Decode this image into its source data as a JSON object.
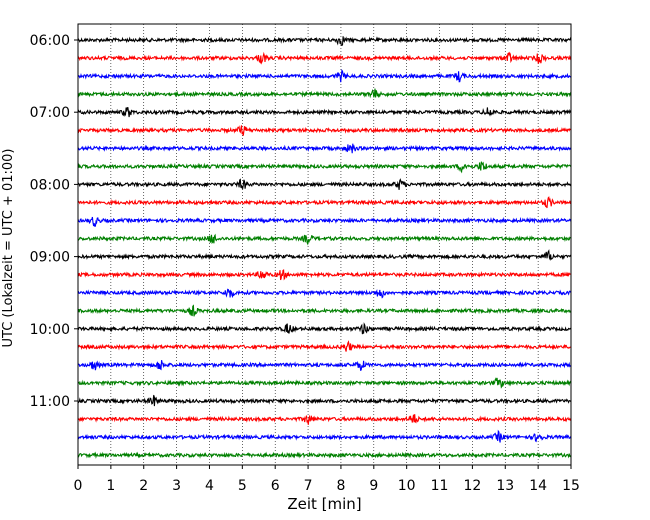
{
  "chart_data": {
    "type": "line",
    "title": "",
    "xlabel": "Zeit  [min]",
    "ylabel": "UTC (Lokalzeit = UTC + 01:00)",
    "xlim": [
      0,
      15
    ],
    "x_ticks": [
      "0",
      "1",
      "2",
      "3",
      "4",
      "5",
      "6",
      "7",
      "8",
      "9",
      "10",
      "11",
      "12",
      "13",
      "14",
      "15"
    ],
    "y_tick_labels": [
      "06:00",
      "07:00",
      "08:00",
      "09:00",
      "10:00",
      "11:00"
    ],
    "grid": "vertical dotted lines at each minute",
    "trace_interval_minutes": 15,
    "traces": [
      {
        "start": "06:00",
        "color": "#000000",
        "events_min": [
          8.0
        ]
      },
      {
        "start": "06:15",
        "color": "#ff0000",
        "events_min": [
          5.6,
          13.1,
          14.05
        ]
      },
      {
        "start": "06:30",
        "color": "#0000ff",
        "events_min": [
          11.6,
          8.0
        ]
      },
      {
        "start": "06:45",
        "color": "#008000",
        "events_min": [
          9.0
        ]
      },
      {
        "start": "07:00",
        "color": "#000000",
        "events_min": [
          1.5,
          12.5
        ]
      },
      {
        "start": "07:15",
        "color": "#ff0000",
        "events_min": [
          5.0
        ]
      },
      {
        "start": "07:30",
        "color": "#0000ff",
        "events_min": [
          8.3
        ]
      },
      {
        "start": "07:45",
        "color": "#008000",
        "events_min": [
          11.7,
          12.3
        ]
      },
      {
        "start": "08:00",
        "color": "#000000",
        "events_min": [
          5.0,
          9.8
        ]
      },
      {
        "start": "08:15",
        "color": "#ff0000",
        "events_min": [
          14.3
        ]
      },
      {
        "start": "08:30",
        "color": "#0000ff",
        "events_min": [
          0.5
        ]
      },
      {
        "start": "08:45",
        "color": "#008000",
        "events_min": [
          4.1,
          7.0
        ]
      },
      {
        "start": "09:00",
        "color": "#000000",
        "events_min": [
          14.3
        ]
      },
      {
        "start": "09:15",
        "color": "#ff0000",
        "events_min": [
          5.6,
          6.2
        ]
      },
      {
        "start": "09:30",
        "color": "#0000ff",
        "events_min": [
          4.6,
          9.2
        ]
      },
      {
        "start": "09:45",
        "color": "#008000",
        "events_min": [
          3.5
        ]
      },
      {
        "start": "10:00",
        "color": "#000000",
        "events_min": [
          6.4,
          8.7
        ]
      },
      {
        "start": "10:15",
        "color": "#ff0000",
        "events_min": [
          8.2
        ]
      },
      {
        "start": "10:30",
        "color": "#0000ff",
        "events_min": [
          0.5,
          2.5,
          8.6
        ]
      },
      {
        "start": "10:45",
        "color": "#008000",
        "events_min": [
          12.8
        ]
      },
      {
        "start": "11:00",
        "color": "#000000",
        "events_min": [
          2.3
        ]
      },
      {
        "start": "11:15",
        "color": "#ff0000",
        "events_min": [
          7.0,
          10.2
        ]
      },
      {
        "start": "11:30",
        "color": "#0000ff",
        "events_min": [
          12.8,
          14.0
        ]
      },
      {
        "start": "11:45",
        "color": "#008000",
        "events_min": []
      }
    ]
  }
}
